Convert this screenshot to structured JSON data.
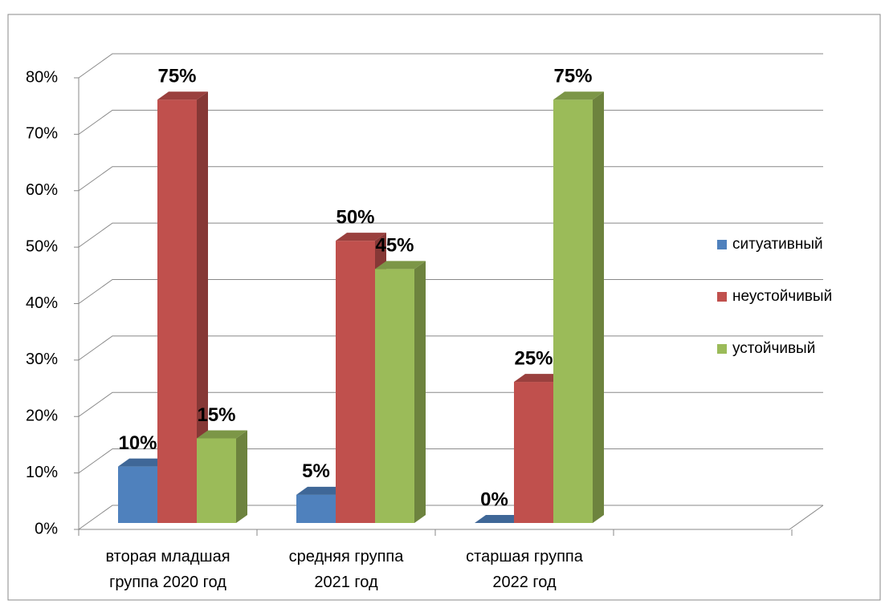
{
  "chart_data": {
    "type": "bar3d",
    "categories": [
      "вторая младшая группа 2020 год",
      "средняя группа 2021 год",
      "старшая группа 2022 год"
    ],
    "series": [
      {
        "name": "ситуативный",
        "color": "#4f81bd",
        "values": [
          10,
          5,
          0
        ],
        "value_labels": [
          "10%",
          "5%",
          "0%"
        ]
      },
      {
        "name": "неустойчивый",
        "color": "#c0504d",
        "values": [
          75,
          50,
          25
        ],
        "value_labels": [
          "75%",
          "50%",
          "25%"
        ]
      },
      {
        "name": "устойчивый",
        "color": "#9bbb59",
        "values": [
          15,
          45,
          75
        ],
        "value_labels": [
          "15%",
          "45%",
          "75%"
        ]
      }
    ],
    "ylim": [
      0,
      80
    ],
    "yticks": [
      {
        "value": 0,
        "label": "0%"
      },
      {
        "value": 10,
        "label": "10%"
      },
      {
        "value": 20,
        "label": "20%"
      },
      {
        "value": 30,
        "label": "30%"
      },
      {
        "value": 40,
        "label": "40%"
      },
      {
        "value": 50,
        "label": "50%"
      },
      {
        "value": 60,
        "label": "60%"
      },
      {
        "value": 70,
        "label": "70%"
      },
      {
        "value": 80,
        "label": "80%"
      }
    ],
    "grid": true,
    "legend": "right"
  }
}
